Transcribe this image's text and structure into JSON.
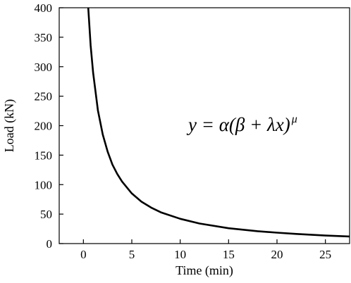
{
  "chart_data": {
    "type": "line",
    "xlabel": "Time (min)",
    "ylabel": "Load (kN)",
    "xlim": [
      -2.5,
      27.5
    ],
    "ylim": [
      0,
      400
    ],
    "xticks": [
      0,
      5,
      10,
      15,
      20,
      25
    ],
    "yticks": [
      0,
      50,
      100,
      150,
      200,
      250,
      300,
      350,
      400
    ],
    "grid": false,
    "annotation": {
      "base": "y = α(β + λx)",
      "superscript": "μ"
    },
    "series": [
      {
        "x": [
          0.5,
          0.75,
          1,
          1.5,
          2,
          2.5,
          3,
          3.5,
          4,
          5,
          6,
          7,
          8,
          10,
          12,
          15,
          18,
          20,
          22,
          25,
          27.5
        ],
        "y": [
          400,
          336,
          290,
          226,
          185,
          156,
          134,
          118,
          105,
          85,
          71,
          61,
          53,
          42,
          34,
          26,
          21,
          18.5,
          16.3,
          13.6,
          12
        ]
      }
    ],
    "line_color": "#000000"
  }
}
